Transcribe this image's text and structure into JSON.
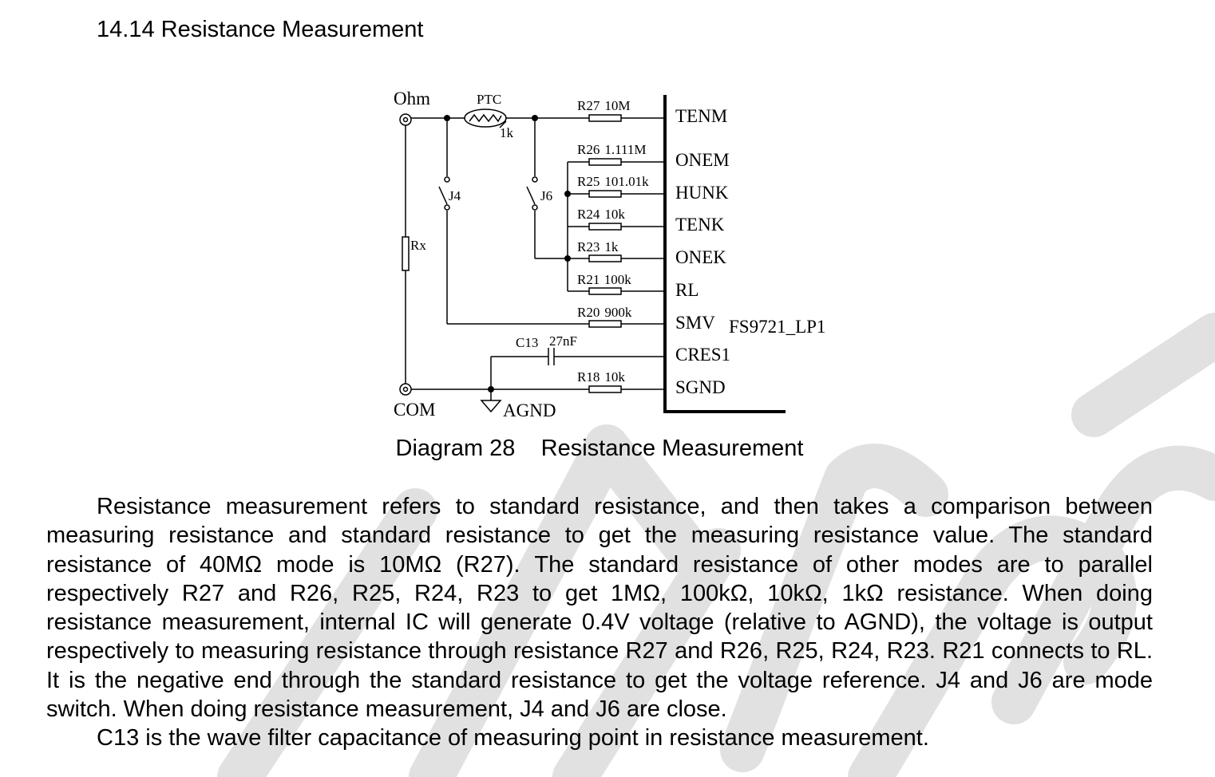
{
  "section": {
    "number": "14.14",
    "heading": "14.14 Resistance Measurement"
  },
  "schematic": {
    "terminals": {
      "ohm": "Ohm",
      "com": "COM",
      "agnd": "AGND"
    },
    "ptc": {
      "label": "PTC",
      "value": "1k"
    },
    "rx_label": "Rx",
    "switches": {
      "j4": "J4",
      "j6": "J6"
    },
    "capacitor": {
      "ref": "C13",
      "value": "27nF"
    },
    "resistors": [
      {
        "ref": "R27",
        "value": "10M"
      },
      {
        "ref": "R26",
        "value": "1.111M"
      },
      {
        "ref": "R25",
        "value": "101.01k"
      },
      {
        "ref": "R24",
        "value": "10k"
      },
      {
        "ref": "R23",
        "value": "1k"
      },
      {
        "ref": "R21",
        "value": "100k"
      },
      {
        "ref": "R20",
        "value": "900k"
      },
      {
        "ref": "R18",
        "value": "10k"
      }
    ],
    "ic": {
      "name": "FS9721_LP1",
      "pins": [
        "TENM",
        "ONEM",
        "HUNK",
        "TENK",
        "ONEK",
        "RL",
        "SMV",
        "CRES1",
        "SGND"
      ]
    }
  },
  "caption": "Diagram 28    Resistance Measurement",
  "paragraphs": [
    "Resistance measurement refers to standard resistance, and then takes a comparison between measuring resistance and standard resistance to get the measuring resistance value. The standard resistance of 40MΩ mode is 10MΩ (R27). The standard resistance of other modes are to parallel respectively R27 and R26, R25, R24, R23 to get 1MΩ, 100kΩ, 10kΩ, 1kΩ resistance. When doing resistance measurement, internal IC will generate 0.4V voltage (relative to AGND), the voltage is output respectively to measuring resistance through resistance R27 and R26, R25, R24, R23. R21 connects to RL. It is the negative end through the standard resistance to get the voltage reference. J4 and J6 are mode switch. When doing resistance measurement, J4 and J6 are close.",
    "C13 is the wave filter capacitance of measuring point in resistance measurement."
  ],
  "watermark_color": "#dcdcdc"
}
